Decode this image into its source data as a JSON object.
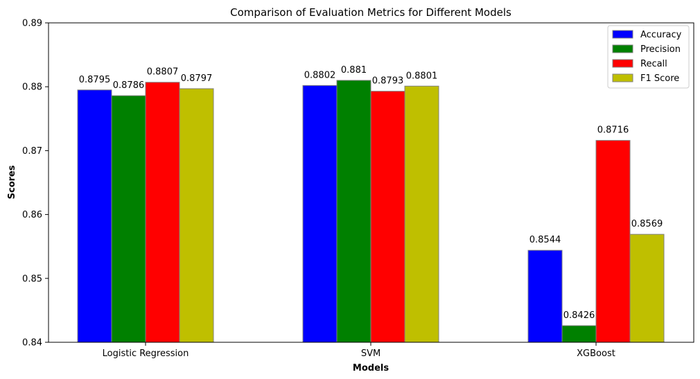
{
  "chart_data": {
    "type": "bar",
    "title": "Comparison of Evaluation Metrics for Different Models",
    "xlabel": "Models",
    "ylabel": "Scores",
    "ylim": [
      0.84,
      0.89
    ],
    "yticks": [
      "0.84",
      "0.85",
      "0.86",
      "0.87",
      "0.88",
      "0.89"
    ],
    "categories": [
      "Logistic Regression",
      "SVM",
      "XGBoost"
    ],
    "legend_position": "top-right",
    "grid": false,
    "series": [
      {
        "name": "Accuracy",
        "color": "#0000ff",
        "values": [
          0.8795,
          0.8802,
          0.8544
        ],
        "labels": [
          "0.8795",
          "0.8802",
          "0.8544"
        ]
      },
      {
        "name": "Precision",
        "color": "#008000",
        "values": [
          0.8786,
          0.881,
          0.8426
        ],
        "labels": [
          "0.8786",
          "0.881",
          "0.8426"
        ]
      },
      {
        "name": "Recall",
        "color": "#ff0000",
        "values": [
          0.8807,
          0.8793,
          0.8716
        ],
        "labels": [
          "0.8807",
          "0.8793",
          "0.8716"
        ]
      },
      {
        "name": "F1 Score",
        "color": "#bfbf00",
        "values": [
          0.8797,
          0.8801,
          0.8569
        ],
        "labels": [
          "0.8797",
          "0.8801",
          "0.8569"
        ]
      }
    ]
  }
}
